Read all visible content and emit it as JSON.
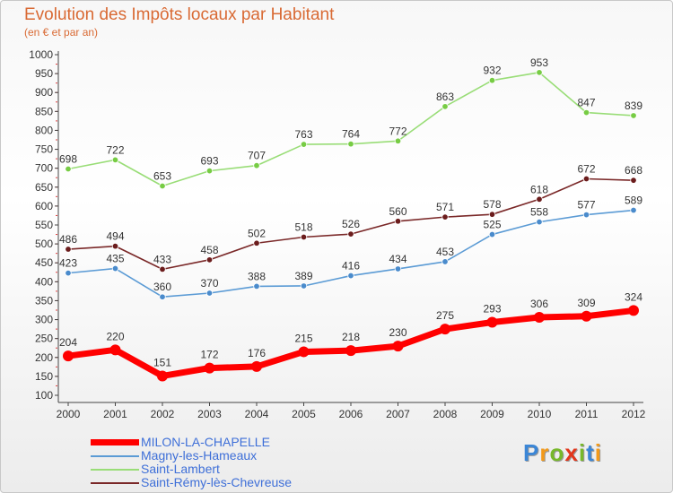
{
  "title": "Evolution des Impôts locaux par Habitant",
  "subtitle": "(en € et par an)",
  "logo": {
    "letters": [
      "P",
      "r",
      "o",
      "x",
      "i",
      "t",
      "i"
    ],
    "colors": [
      "#3b86d6",
      "#f39a1a",
      "#77b82a",
      "#e2361b",
      "#77b82a",
      "#3b86d6",
      "#f39a1a"
    ]
  },
  "chart_data": {
    "type": "line",
    "title": "Evolution des Impôts locaux par Habitant",
    "subtitle": "(en € et par an)",
    "x": [
      "2000",
      "2001",
      "2002",
      "2003",
      "2004",
      "2005",
      "2006",
      "2007",
      "2008",
      "2009",
      "2010",
      "2011",
      "2012"
    ],
    "ylim": [
      100,
      1000
    ],
    "yticks": [
      100,
      150,
      200,
      250,
      300,
      350,
      400,
      450,
      500,
      550,
      600,
      650,
      700,
      750,
      800,
      850,
      900,
      950,
      1000
    ],
    "grid": false,
    "legend_position": "bottom-left",
    "series": [
      {
        "name": "MILON-LA-CHAPELLE",
        "color": "#ff0000",
        "marker_color": "#ff0000",
        "emphasis": true,
        "values": [
          204,
          220,
          151,
          172,
          176,
          215,
          218,
          230,
          275,
          293,
          306,
          309,
          324
        ]
      },
      {
        "name": "Magny-les-Hameaux",
        "color": "#5b9bd5",
        "marker_color": "#4a8bcc",
        "emphasis": false,
        "values": [
          423,
          435,
          360,
          370,
          388,
          389,
          416,
          434,
          453,
          525,
          558,
          577,
          589
        ]
      },
      {
        "name": "Saint-Lambert",
        "color": "#99dd77",
        "marker_color": "#77cc44",
        "emphasis": false,
        "values": [
          698,
          722,
          653,
          693,
          707,
          763,
          764,
          772,
          863,
          932,
          953,
          847,
          839
        ]
      },
      {
        "name": "Saint-Rémy-lès-Chevreuse",
        "color": "#7a2828",
        "marker_color": "#6b1c1c",
        "emphasis": false,
        "values": [
          486,
          494,
          433,
          458,
          502,
          518,
          526,
          560,
          571,
          578,
          618,
          672,
          668
        ]
      }
    ]
  }
}
